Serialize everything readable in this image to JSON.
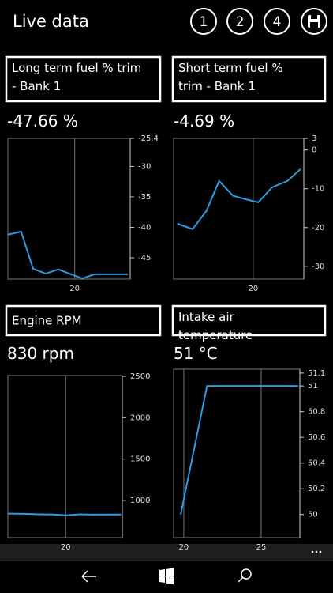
{
  "header": {
    "title": "Live data",
    "buttons": [
      "1",
      "2",
      "4"
    ]
  },
  "chart_data": [
    {
      "type": "line",
      "title": "Long term fuel % trim - Bank 1",
      "reading": "-47.66 %",
      "color": "#2a9ce4",
      "x": [
        14.7,
        15.75,
        16.7,
        17.7,
        18.7,
        19.7,
        20.6,
        21.6,
        22.6,
        24.2
      ],
      "values": [
        -41.2,
        -40.7,
        -46.8,
        -47.6,
        -46.9,
        -47.7,
        -48.4,
        -47.7,
        -47.7,
        -47.7
      ],
      "xlim": [
        14.7,
        24.4
      ],
      "ylim": [
        -48.5,
        -25.4
      ],
      "xticks": [
        20
      ],
      "yticks": [
        -25.4,
        -30,
        -35,
        -40,
        -45
      ],
      "grid": true
    },
    {
      "type": "line",
      "title": "Short term fuel % trim - Bank 1",
      "reading": "-4.69 %",
      "color": "#2a9ce4",
      "x": [
        14.0,
        15.2,
        16.3,
        17.3,
        18.4,
        19.4,
        20.4,
        21.5,
        22.7,
        23.75
      ],
      "values": [
        -19,
        -20.4,
        -15.7,
        -8,
        -11.8,
        -12.7,
        -13.5,
        -9.6,
        -8,
        -4.9
      ],
      "xlim": [
        13.7,
        24
      ],
      "ylim": [
        -33.3,
        3
      ],
      "xticks": [
        20
      ],
      "yticks": [
        3,
        0,
        -10,
        -20,
        -30
      ],
      "grid": true
    },
    {
      "type": "line",
      "title": "Engine RPM",
      "reading": "830 rpm",
      "color": "#2a9ce4",
      "x": [
        15.4,
        16.7,
        17.9,
        19,
        20,
        21.1,
        22.2,
        23.3,
        24.4
      ],
      "values": [
        840,
        838,
        832,
        830,
        820,
        832,
        828,
        830,
        830
      ],
      "xlim": [
        15.4,
        24.5
      ],
      "ylim": [
        550,
        2510
      ],
      "xticks": [
        20
      ],
      "yticks": [
        2500,
        2000,
        1500,
        1000
      ],
      "grid": true
    },
    {
      "type": "line",
      "title": "Intake air temperature",
      "reading": "51 °C",
      "color": "#2a9ce4",
      "x": [
        19.8,
        21.5,
        23,
        24.5,
        26,
        27.4
      ],
      "values": [
        50,
        51,
        51,
        51,
        51,
        51
      ],
      "xlim": [
        19.34,
        27.5
      ],
      "ylim": [
        49.82,
        51.13
      ],
      "xticks": [
        20,
        25
      ],
      "yticks": [
        51.1,
        51,
        50.8,
        50.6,
        50.4,
        50.2,
        50
      ],
      "grid": true
    }
  ]
}
